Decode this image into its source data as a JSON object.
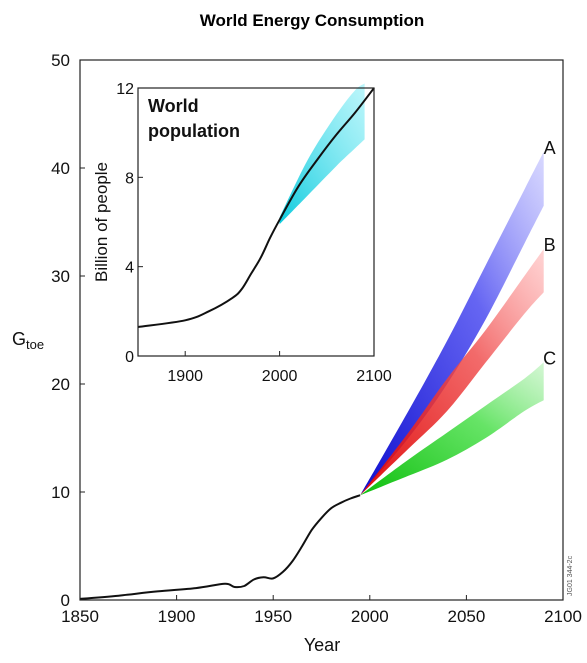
{
  "chart_data": [
    {
      "type": "line",
      "title": "World Energy Consumption",
      "xlabel": "Year",
      "ylabel_main": "G",
      "ylabel_sub": "toe",
      "xlim": [
        1850,
        2100
      ],
      "ylim": [
        0,
        50
      ],
      "xticks": [
        "1850",
        "1900",
        "1950",
        "2000",
        "2050",
        "2100"
      ],
      "yticks": [
        "0",
        "10",
        "20",
        "30",
        "40",
        "50"
      ],
      "grid": false,
      "series": [
        {
          "name": "",
          "color": "#111111",
          "x": [
            1850,
            1870,
            1890,
            1910,
            1925,
            1930,
            1935,
            1940,
            1945,
            1950,
            1955,
            1960,
            1965,
            1970,
            1975,
            1980,
            1985,
            1990,
            1995
          ],
          "y": [
            0.1,
            0.4,
            0.8,
            1.1,
            1.5,
            1.2,
            1.3,
            1.9,
            2.1,
            2.0,
            2.6,
            3.6,
            5.0,
            6.5,
            7.6,
            8.5,
            9.0,
            9.4,
            9.7
          ]
        }
      ],
      "scenarios": [
        {
          "label": "A",
          "color": "#2a2ae8",
          "x": [
            1995,
            2020,
            2040,
            2060,
            2080,
            2090
          ],
          "y_low": [
            9.7,
            15.0,
            20.0,
            26.0,
            33.0,
            36.5
          ],
          "y_high": [
            9.7,
            17.5,
            24.0,
            31.0,
            38.0,
            41.5
          ]
        },
        {
          "label": "B",
          "color": "#ee2222",
          "x": [
            1995,
            2020,
            2040,
            2060,
            2080,
            2090
          ],
          "y_low": [
            9.7,
            14.0,
            17.5,
            22.0,
            26.5,
            28.5
          ],
          "y_high": [
            9.7,
            15.5,
            20.5,
            25.0,
            30.0,
            32.5
          ]
        },
        {
          "label": "C",
          "color": "#22cc22",
          "x": [
            1995,
            2020,
            2040,
            2060,
            2080,
            2090
          ],
          "y_low": [
            9.7,
            11.5,
            13.0,
            15.0,
            17.5,
            18.5
          ],
          "y_high": [
            9.7,
            13.0,
            15.5,
            18.0,
            20.5,
            22.0
          ]
        }
      ]
    },
    {
      "type": "line",
      "title": "World population",
      "xlabel": "",
      "ylabel": "Billion of people",
      "xlim": [
        1850,
        2100
      ],
      "ylim": [
        0,
        12
      ],
      "xticks": [
        "1900",
        "2000",
        "2100"
      ],
      "yticks": [
        "0",
        "4",
        "8",
        "12"
      ],
      "grid": false,
      "series": [
        {
          "name": "",
          "color": "#111111",
          "x": [
            1850,
            1900,
            1925,
            1950,
            1960,
            1970,
            1980,
            1990,
            2000,
            2020,
            2040,
            2060,
            2080,
            2100
          ],
          "y": [
            1.3,
            1.6,
            2.0,
            2.6,
            3.0,
            3.7,
            4.4,
            5.3,
            6.1,
            7.6,
            8.8,
            9.9,
            10.9,
            12.0
          ]
        }
      ],
      "uncertainty_band": {
        "color": "#22d8e8",
        "x": [
          2000,
          2030,
          2060,
          2080,
          2090
        ],
        "y_low": [
          5.9,
          7.2,
          8.5,
          9.3,
          9.7
        ],
        "y_high": [
          6.2,
          8.8,
          10.8,
          11.9,
          12.2
        ]
      }
    }
  ],
  "document_code": "JG01 344-2c"
}
